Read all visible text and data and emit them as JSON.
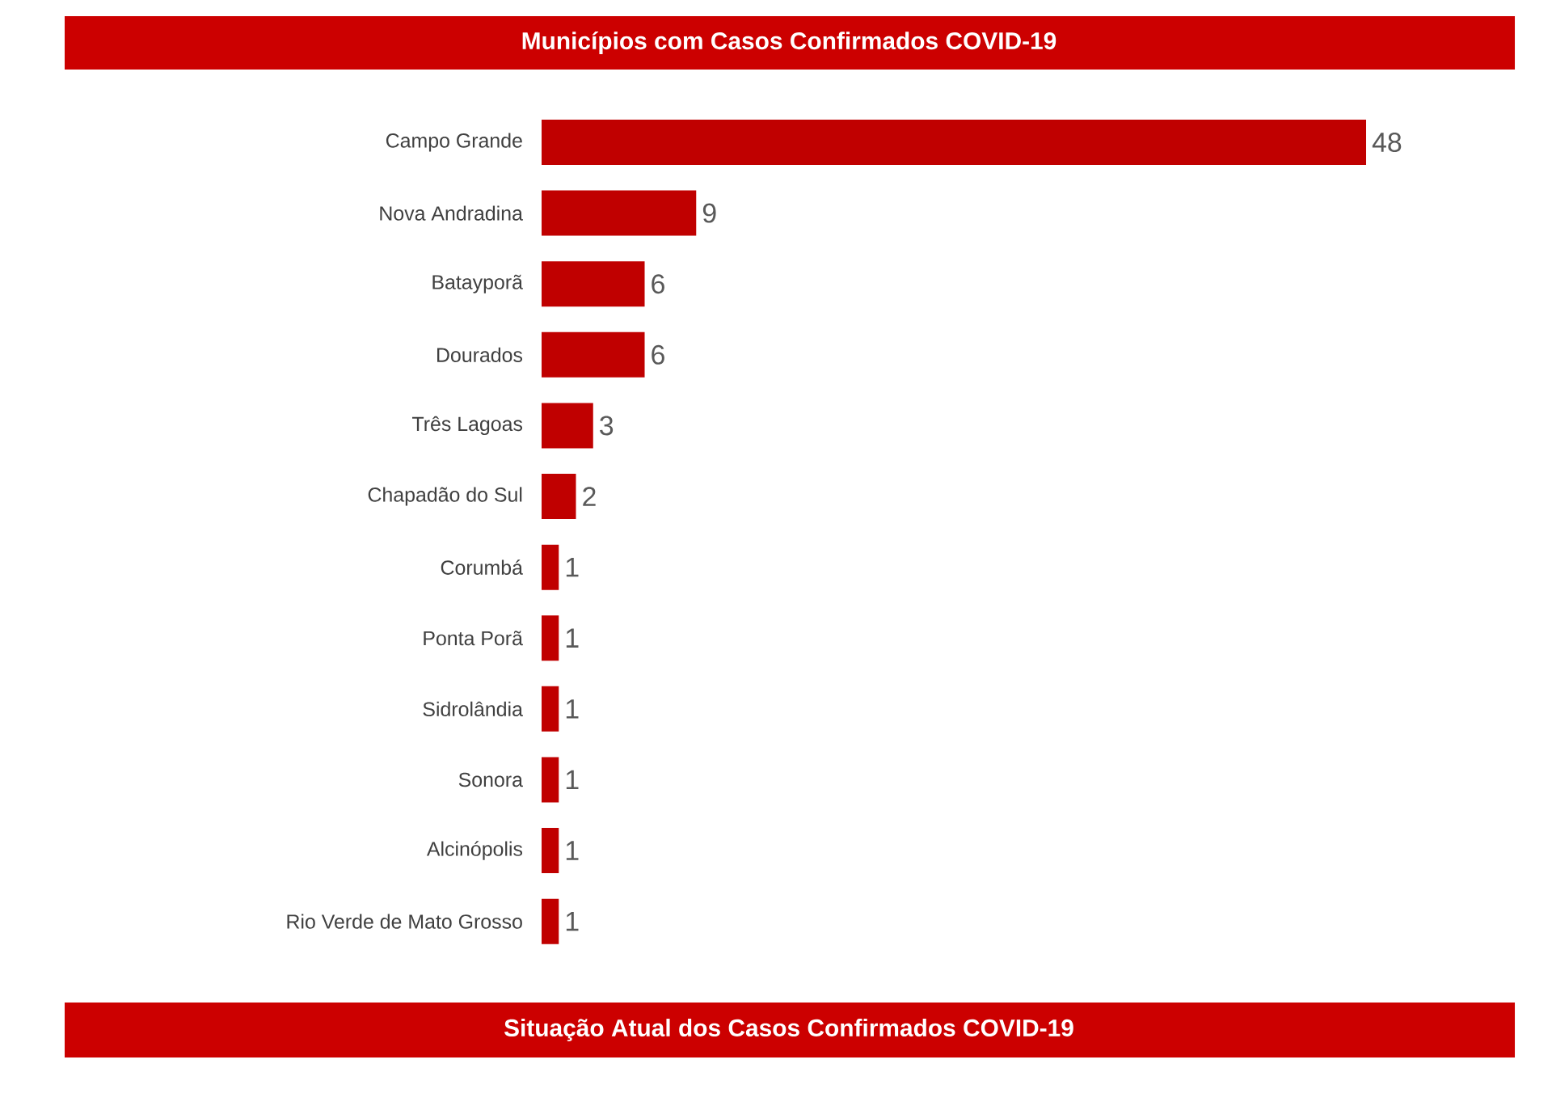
{
  "chart_data": {
    "type": "bar",
    "orientation": "horizontal",
    "title": "Municípios com Casos Confirmados COVID-19",
    "categories": [
      "Campo Grande",
      "Nova Andradina",
      "Batayporã",
      "Dourados",
      "Três Lagoas",
      "Chapadão do Sul",
      "Corumbá",
      "Ponta Porã",
      "Sidrolândia",
      "Sonora",
      "Alcinópolis",
      "Rio Verde de Mato Grosso"
    ],
    "values": [
      48,
      9,
      6,
      6,
      3,
      2,
      1,
      1,
      1,
      1,
      1,
      1
    ],
    "color": "#c00000",
    "data_labels": true,
    "annotations": [
      "Situação Atual  dos Casos Confirmados COVID-19"
    ]
  }
}
